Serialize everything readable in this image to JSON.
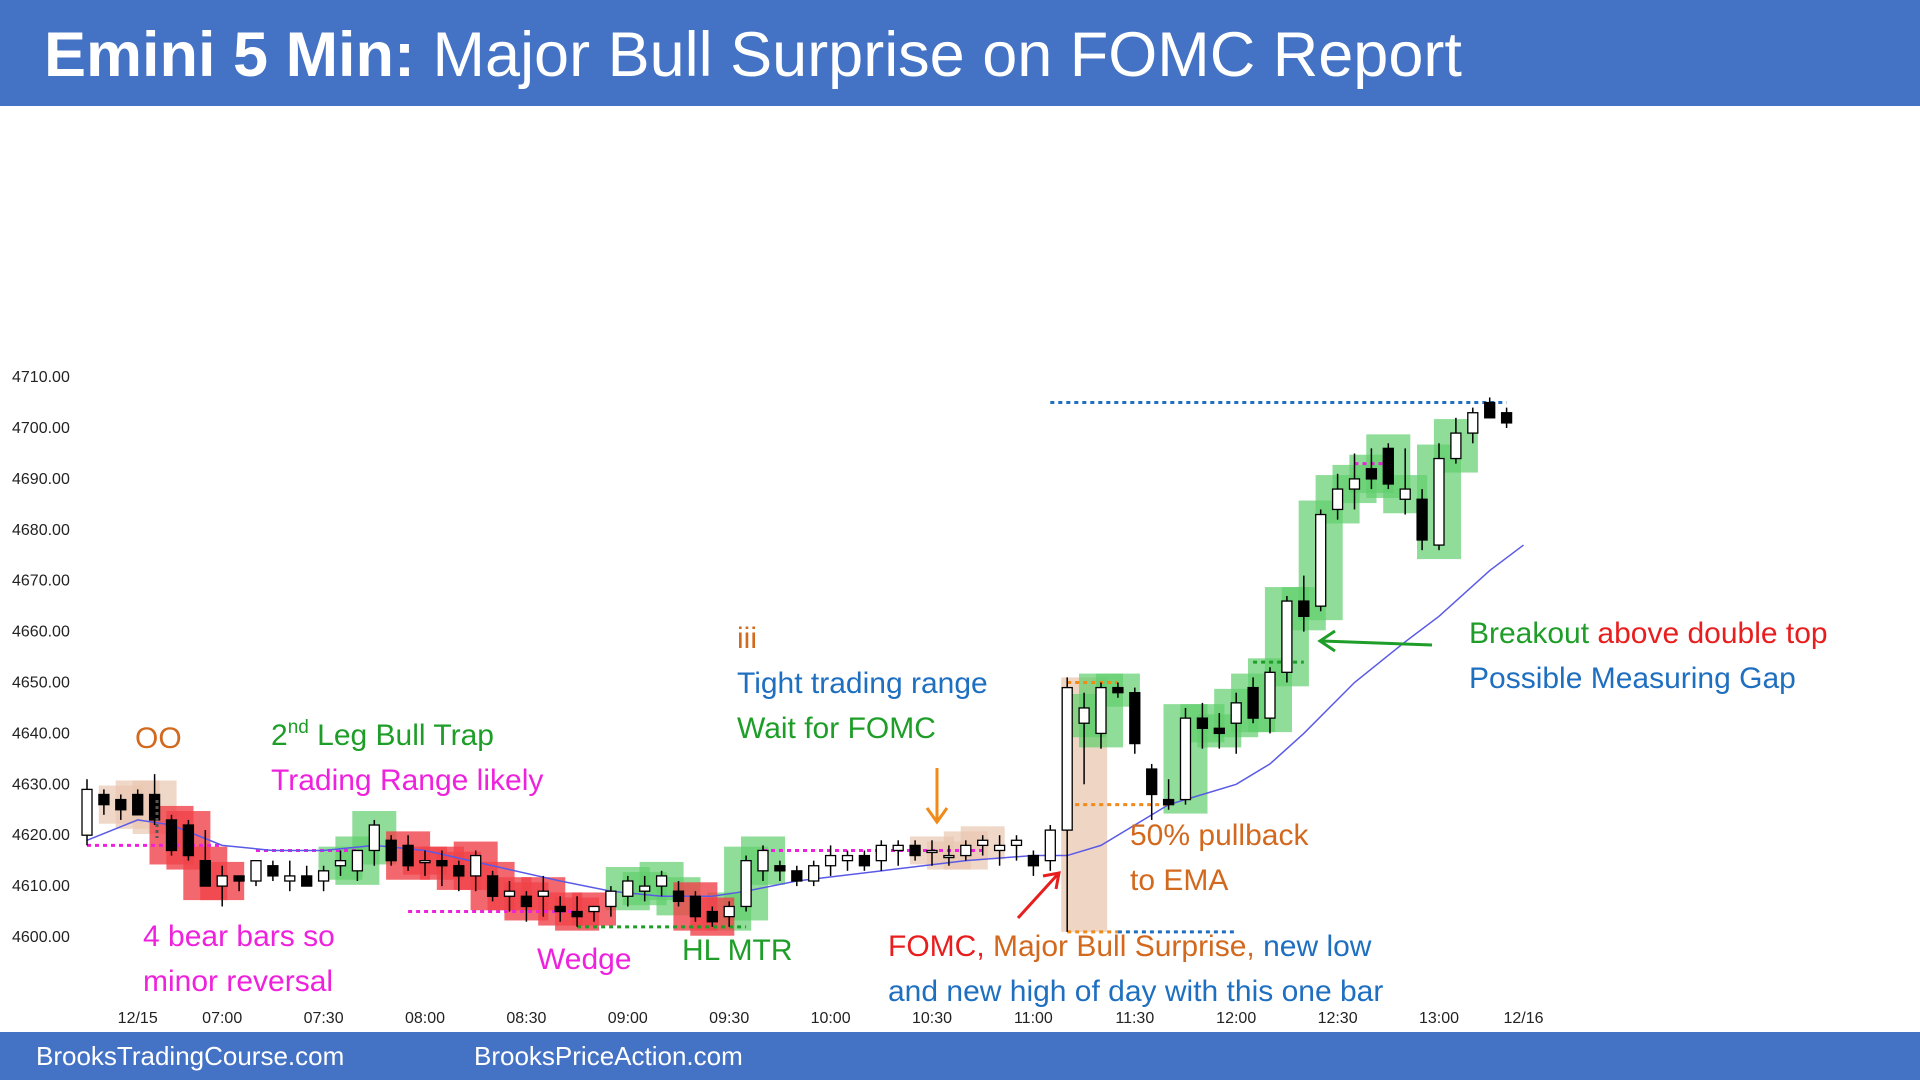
{
  "header": {
    "title_bold": "Emini 5 Min:",
    "title_rest": "Major Bull Surprise on FOMC Report"
  },
  "footer": {
    "left": "BrooksTradingCourse.com",
    "right": "BrooksPriceAction.com"
  },
  "colors": {
    "header_bg": "#4472c4",
    "bull_bar_highlight": "#5fcf6c",
    "bear_bar_highlight": "#f0424a",
    "context_highlight": "#e9c8b0",
    "ema": "#5a5ae6",
    "annotation_green": "#1e9e28",
    "annotation_magenta": "#ee22dd",
    "annotation_blue": "#1f6fc0",
    "annotation_orange": "#d2691e",
    "annotation_red": "#e81e1e"
  },
  "annotations": {
    "oo": "OO",
    "bear_bars_1": "4 bear bars so",
    "bear_bars_2": "minor reversal",
    "leg_prefix": "2",
    "leg_sup": "nd",
    "leg_rest": " Leg Bull Trap",
    "trading_range": "Trading Range likely",
    "wedge": "Wedge",
    "hl_mtr": "HL MTR",
    "iii": "iii",
    "tight_range": "Tight trading range",
    "wait_fomc": "Wait for FOMC",
    "fomc": "FOMC,",
    "major_bull": " Major Bull Surprise,",
    "new_low": " new low",
    "new_high": "and new high of day with this one bar",
    "pullback_1": "50% pullback",
    "pullback_2": "to EMA",
    "breakout": "Breakout",
    "above_double_top": " above double top",
    "measuring_gap": "Possible Measuring Gap"
  },
  "chart_data": {
    "type": "candlestick",
    "title": "Emini 5 Min: Major Bull Surprise on FOMC Report",
    "ylim": [
      4598,
      4713
    ],
    "y_ticks": [
      "4710.00",
      "4700.00",
      "4690.00",
      "4680.00",
      "4670.00",
      "4660.00",
      "4650.00",
      "4640.00",
      "4630.00",
      "4620.00",
      "4610.00",
      "4600.00"
    ],
    "y_tick_values": [
      4710,
      4700,
      4690,
      4680,
      4670,
      4660,
      4650,
      4640,
      4630,
      4620,
      4610,
      4600
    ],
    "x_tick_labels": [
      "12/15",
      "07:00",
      "07:30",
      "08:00",
      "08:30",
      "09:00",
      "09:30",
      "10:00",
      "10:30",
      "11:00",
      "11:30",
      "12:00",
      "12:30",
      "13:00",
      "12/16"
    ],
    "x_tick_bar_index": [
      3,
      8,
      14,
      20,
      26,
      32,
      38,
      44,
      50,
      56,
      62,
      68,
      74,
      80,
      85
    ],
    "grid": false,
    "candles": [
      [
        4620,
        4631,
        4618,
        4629
      ],
      [
        4628,
        4629,
        4624,
        4626
      ],
      [
        4627,
        4628,
        4623,
        4625
      ],
      [
        4628,
        4629,
        4624,
        4624
      ],
      [
        4628,
        4632,
        4622,
        4623
      ],
      [
        4623,
        4624,
        4616,
        4617
      ],
      [
        4622,
        4623,
        4615,
        4616
      ],
      [
        4615,
        4621,
        4610,
        4610
      ],
      [
        4610,
        4614,
        4606,
        4612
      ],
      [
        4612,
        4612,
        4609,
        4611
      ],
      [
        4611,
        4615,
        4610,
        4615
      ],
      [
        4614,
        4615,
        4611,
        4612
      ],
      [
        4611,
        4615,
        4609,
        4612
      ],
      [
        4612,
        4614,
        4610,
        4610
      ],
      [
        4611,
        4614,
        4609,
        4613
      ],
      [
        4614,
        4617,
        4612,
        4615
      ],
      [
        4613,
        4617,
        4611,
        4617
      ],
      [
        4617,
        4623,
        4614,
        4622
      ],
      [
        4619,
        4620,
        4614,
        4615
      ],
      [
        4618,
        4620,
        4613,
        4614
      ],
      [
        4615,
        4617,
        4612,
        4615
      ],
      [
        4615,
        4617,
        4610,
        4614
      ],
      [
        4614,
        4615,
        4609,
        4612
      ],
      [
        4612,
        4617,
        4609,
        4616
      ],
      [
        4612,
        4613,
        4607,
        4608
      ],
      [
        4608,
        4611,
        4605,
        4609
      ],
      [
        4608,
        4609,
        4603,
        4606
      ],
      [
        4608,
        4612,
        4604,
        4609
      ],
      [
        4606,
        4608,
        4603,
        4605
      ],
      [
        4605,
        4608,
        4602,
        4604
      ],
      [
        4605,
        4606,
        4603,
        4606
      ],
      [
        4606,
        4610,
        4604,
        4609
      ],
      [
        4608,
        4612,
        4606,
        4611
      ],
      [
        4609,
        4612,
        4607,
        4610
      ],
      [
        4610,
        4613,
        4608,
        4612
      ],
      [
        4609,
        4611,
        4606,
        4607
      ],
      [
        4608,
        4609,
        4603,
        4604
      ],
      [
        4605,
        4606,
        4602,
        4603
      ],
      [
        4604,
        4607,
        4602,
        4606
      ],
      [
        4606,
        4616,
        4605,
        4615
      ],
      [
        4613,
        4618,
        4611,
        4617
      ],
      [
        4614,
        4615,
        4611,
        4613
      ],
      [
        4613,
        4614,
        4610,
        4611
      ],
      [
        4611,
        4615,
        4610,
        4614
      ],
      [
        4614,
        4618,
        4612,
        4616
      ],
      [
        4615,
        4617,
        4613,
        4616
      ],
      [
        4616,
        4617,
        4613,
        4614
      ],
      [
        4615,
        4619,
        4613,
        4618
      ],
      [
        4617,
        4619,
        4614,
        4618
      ],
      [
        4618,
        4619,
        4615,
        4616
      ],
      [
        4617,
        4619,
        4614,
        4617
      ],
      [
        4616,
        4618,
        4614,
        4616
      ],
      [
        4616,
        4619,
        4615,
        4618
      ],
      [
        4618,
        4620,
        4616,
        4619
      ],
      [
        4617,
        4620,
        4614,
        4618
      ],
      [
        4618,
        4620,
        4615,
        4619
      ],
      [
        4616,
        4617,
        4612,
        4614
      ],
      [
        4615,
        4622,
        4613,
        4621
      ],
      [
        4621,
        4651,
        4601,
        4649
      ],
      [
        4642,
        4648,
        4630,
        4645
      ],
      [
        4640,
        4650,
        4637,
        4649
      ],
      [
        4649,
        4650,
        4647,
        4648
      ],
      [
        4648,
        4649,
        4636,
        4638
      ],
      [
        4633,
        4634,
        4623,
        4628
      ],
      [
        4627,
        4631,
        4625,
        4626
      ],
      [
        4627,
        4645,
        4626,
        4643
      ],
      [
        4643,
        4646,
        4637,
        4641
      ],
      [
        4641,
        4644,
        4637,
        4640
      ],
      [
        4642,
        4648,
        4636,
        4646
      ],
      [
        4649,
        4651,
        4642,
        4643
      ],
      [
        4643,
        4653,
        4640,
        4652
      ],
      [
        4652,
        4667,
        4650,
        4666
      ],
      [
        4666,
        4671,
        4660,
        4663
      ],
      [
        4665,
        4684,
        4664,
        4683
      ],
      [
        4684,
        4691,
        4682,
        4688
      ],
      [
        4688,
        4695,
        4684,
        4690
      ],
      [
        4692,
        4696,
        4688,
        4690
      ],
      [
        4696,
        4697,
        4688,
        4689
      ],
      [
        4686,
        4696,
        4683,
        4688
      ],
      [
        4686,
        4688,
        4676,
        4678
      ],
      [
        4677,
        4697,
        4676,
        4694
      ],
      [
        4694,
        4702,
        4693,
        4699
      ],
      [
        4699,
        4704,
        4697,
        4703
      ],
      [
        4705,
        4706,
        4702,
        4702
      ],
      [
        4703,
        4704,
        4700,
        4701
      ]
    ],
    "ema_points": [
      [
        0,
        4619
      ],
      [
        3,
        4623
      ],
      [
        5,
        4622
      ],
      [
        8,
        4618
      ],
      [
        11,
        4617
      ],
      [
        14,
        4617
      ],
      [
        17,
        4618
      ],
      [
        20,
        4617
      ],
      [
        24,
        4614
      ],
      [
        28,
        4611
      ],
      [
        31,
        4609
      ],
      [
        34,
        4608
      ],
      [
        37,
        4608
      ],
      [
        39,
        4609
      ],
      [
        42,
        4611
      ],
      [
        47,
        4613
      ],
      [
        52,
        4615
      ],
      [
        56,
        4616
      ],
      [
        58,
        4616
      ],
      [
        60,
        4618
      ],
      [
        62,
        4622
      ],
      [
        64,
        4626
      ],
      [
        66,
        4628
      ],
      [
        68,
        4630
      ],
      [
        70,
        4634
      ],
      [
        72,
        4640
      ],
      [
        75,
        4650
      ],
      [
        78,
        4658
      ],
      [
        80,
        4663
      ],
      [
        83,
        4672
      ],
      [
        85,
        4677
      ]
    ],
    "bull_highlight_bars": [
      15,
      16,
      17,
      32,
      33,
      34,
      35,
      38,
      39,
      40,
      59,
      60,
      61,
      65,
      66,
      67,
      68,
      69,
      70,
      71,
      72,
      73,
      74,
      75,
      76,
      77,
      78,
      80,
      81
    ],
    "bear_highlight_bars": [
      5,
      6,
      7,
      8,
      19,
      20,
      21,
      22,
      23,
      24,
      25,
      26,
      27,
      28,
      29,
      30,
      36,
      37
    ],
    "context_highlight_bars": [
      2,
      3,
      4,
      50,
      51,
      52,
      53,
      58
    ],
    "reference_lines": [
      {
        "type": "dotted",
        "color": "#1f6fc0",
        "from_bar": 57,
        "to_bar": 84,
        "price": 4705
      },
      {
        "type": "dotted",
        "color": "#f08a1a",
        "from_bar": 58,
        "to_bar": 61,
        "price": 4650
      },
      {
        "type": "dotted",
        "color": "#f08a1a",
        "from_bar": 58,
        "to_bar": 64,
        "price": 4626
      },
      {
        "type": "dotted",
        "color": "#f08a1a",
        "from_bar": 58,
        "to_bar": 61,
        "price": 4601
      },
      {
        "type": "dotted",
        "color": "#1f6fc0",
        "from_bar": 61,
        "to_bar": 68,
        "price": 4601
      },
      {
        "type": "dotted",
        "color": "#1e9e28",
        "from_bar": 29,
        "to_bar": 39,
        "price": 4602
      },
      {
        "type": "dotted",
        "color": "#ee22dd",
        "from_bar": 0,
        "to_bar": 8,
        "price": 4618
      },
      {
        "type": "dotted",
        "color": "#ee22dd",
        "from_bar": 10,
        "to_bar": 16,
        "price": 4617
      },
      {
        "type": "dotted",
        "color": "#ee22dd",
        "from_bar": 19,
        "to_bar": 29,
        "price": 4605
      },
      {
        "type": "dotted",
        "color": "#ee22dd",
        "from_bar": 40,
        "to_bar": 53,
        "price": 4617
      },
      {
        "type": "dotted",
        "color": "#ee22dd",
        "from_bar": 75,
        "to_bar": 77,
        "price": 4693
      },
      {
        "type": "dotted",
        "color": "#1e9e28",
        "from_bar": 69,
        "to_bar": 72,
        "price": 4654
      }
    ]
  }
}
